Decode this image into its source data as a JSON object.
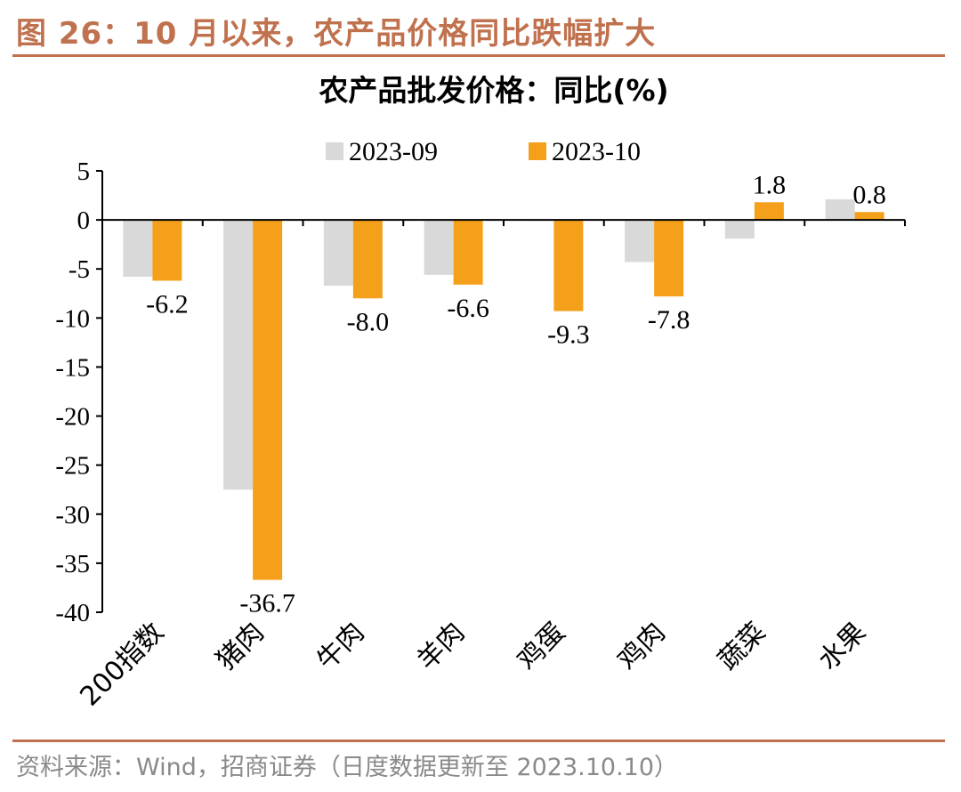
{
  "figure": {
    "title": "图 26：10 月以来，农产品价格同比跌幅扩大",
    "source": "资料来源：Wind，招商证券（日度数据更新至 2023.10.10）"
  },
  "chart_data": {
    "type": "bar",
    "title": "农产品批发价格：同比(%)",
    "categories": [
      "200指数",
      "猪肉",
      "牛肉",
      "羊肉",
      "鸡蛋",
      "鸡肉",
      "蔬菜",
      "水果"
    ],
    "series": [
      {
        "name": "2023-09",
        "color": "#d9d9d9",
        "values": [
          -5.8,
          -27.5,
          -6.7,
          -5.6,
          -0.1,
          -4.3,
          -1.9,
          2.1
        ]
      },
      {
        "name": "2023-10",
        "color": "#f5a01a",
        "values": [
          -6.2,
          -36.7,
          -8.0,
          -6.6,
          -9.3,
          -7.8,
          1.8,
          0.8
        ],
        "data_labels": [
          "-6.2",
          "-36.7",
          "-8.0",
          "-6.6",
          "-9.3",
          "-7.8",
          "1.8",
          "0.8"
        ]
      }
    ],
    "ylim": [
      -40,
      5
    ],
    "yticks": [
      5,
      0,
      -5,
      -10,
      -15,
      -20,
      -25,
      -30,
      -35,
      -40
    ],
    "legend_position": "top-center",
    "grid": false
  }
}
